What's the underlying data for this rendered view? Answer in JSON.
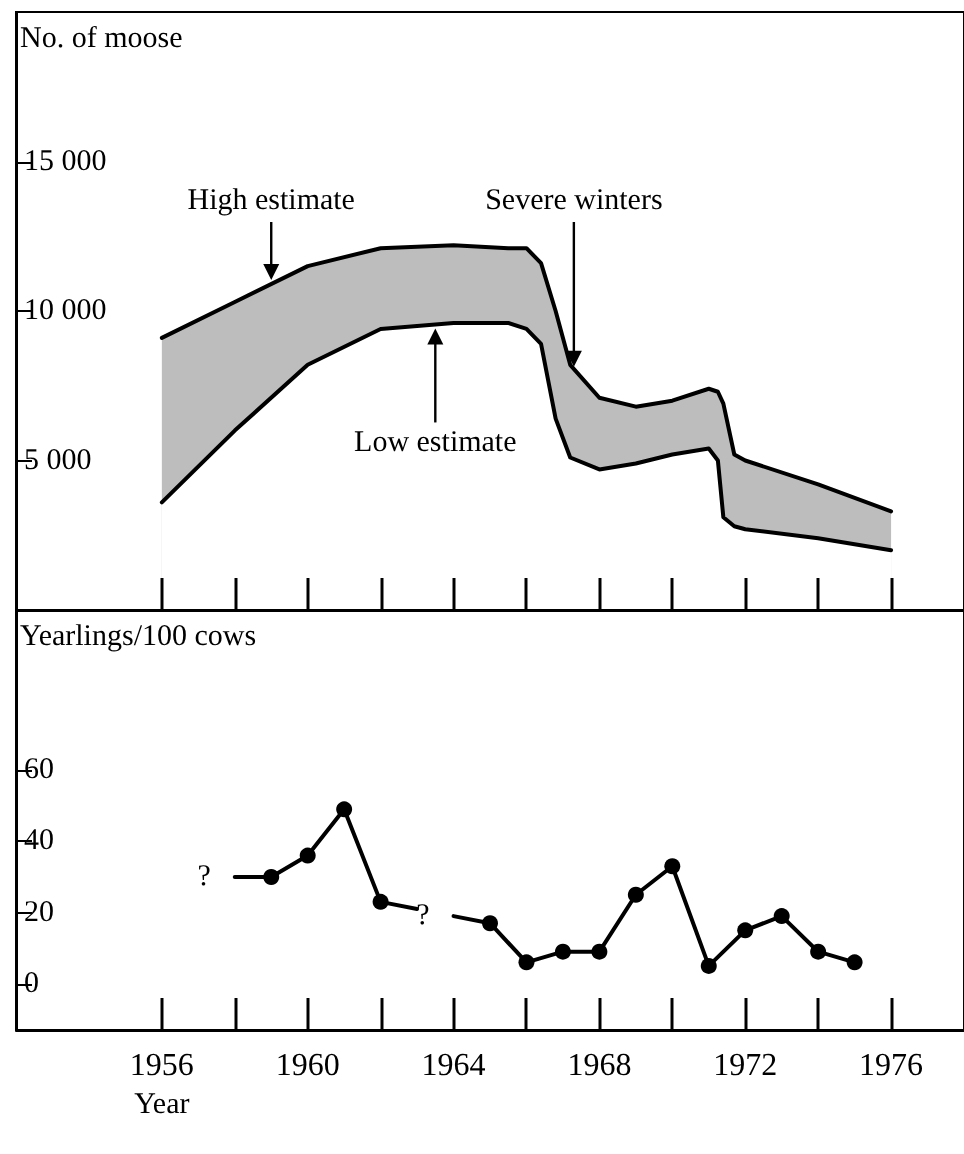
{
  "chart_data": [
    {
      "type": "area",
      "ylabel": "No. of moose",
      "tick_labels": "y",
      "x": [
        1956,
        1958,
        1960,
        1962,
        1964,
        1965.5,
        1966,
        1966.4,
        1966.8,
        1967.2,
        1968,
        1969,
        1970,
        1971,
        1971.25,
        1971.4,
        1971.7,
        1972,
        1974,
        1976
      ],
      "series": [
        {
          "color": "#000000",
          "values": [
            9100,
            10300,
            11500,
            12100,
            12200,
            12100,
            12100,
            11600,
            10000,
            8200,
            7100,
            6800,
            7000,
            7400,
            7300,
            6900,
            5200,
            5000,
            4200,
            3300
          ]
        },
        {
          "color": "#000000",
          "values": [
            3600,
            6000,
            8200,
            9400,
            9600,
            9600,
            9400,
            8900,
            6400,
            5100,
            4700,
            4900,
            5200,
            5400,
            5000,
            3100,
            2800,
            2700,
            2400,
            2000
          ]
        }
      ],
      "xlim": [
        1952,
        1978
      ],
      "xticks": [
        {
          "value": 1956,
          "label": null
        },
        {
          "value": 1958,
          "label": null
        },
        {
          "value": 1960,
          "label": null
        },
        {
          "value": 1962,
          "label": null
        },
        {
          "value": 1964,
          "label": null
        },
        {
          "value": 1966,
          "label": null
        },
        {
          "value": 1968,
          "label": null
        },
        {
          "value": 1970,
          "label": null
        },
        {
          "value": 1972,
          "label": null
        },
        {
          "value": 1974,
          "label": null
        },
        {
          "value": 1976,
          "label": null
        }
      ],
      "ylim": [
        0,
        20000
      ],
      "yticks": [
        {
          "value": 5000,
          "label": "5 000"
        },
        {
          "value": 10000,
          "label": "10 000"
        },
        {
          "value": 15000,
          "label": "15 000"
        }
      ],
      "annotations": [
        {
          "text": "High estimate",
          "x": 1959,
          "y": 10900
        },
        {
          "text": "Low estimate",
          "x": 1963.5,
          "y": 9550
        },
        {
          "text": "Severe winters",
          "x": 1967.3,
          "y": 8000
        }
      ]
    },
    {
      "type": "line",
      "ylabel": "Yearlings/100 cows",
      "xlabel": "Year",
      "marker": "circle",
      "series": [
        {
          "color": "#000000",
          "x": [
            1959,
            1960,
            1961,
            1962
          ],
          "values": [
            30,
            36,
            49,
            23
          ]
        },
        {
          "color": "#000000",
          "x": [
            1965,
            1966,
            1967,
            1968,
            1969,
            1970,
            1971,
            1972,
            1973,
            1974,
            1975
          ],
          "values": [
            17,
            6,
            9,
            9,
            25,
            33,
            5,
            15,
            19,
            9,
            6
          ]
        },
        {
          "color": "#000000",
          "marker": "none",
          "x": [
            1958,
            1959
          ],
          "values": [
            30,
            30
          ]
        },
        {
          "color": "#000000",
          "marker": "none",
          "x": [
            1962,
            1963
          ],
          "values": [
            23,
            21
          ]
        },
        {
          "color": "#000000",
          "marker": "none",
          "x": [
            1964,
            1965
          ],
          "values": [
            19,
            17
          ]
        }
      ],
      "xlim": [
        1952,
        1978
      ],
      "xticks": [
        1956,
        {
          "value": 1958,
          "label": null
        },
        1960,
        {
          "value": 1962,
          "label": null
        },
        1964,
        {
          "value": 1966,
          "label": null
        },
        1968,
        {
          "value": 1970,
          "label": null
        },
        1972,
        {
          "value": 1974,
          "label": null
        },
        1976
      ],
      "ylim": [
        -13,
        105
      ],
      "yticks": [
        0,
        20,
        40,
        60
      ],
      "annotations": [
        {
          "text": "?",
          "x": 1958,
          "y": 30
        },
        {
          "text": "?",
          "x": 1964,
          "y": 19
        }
      ]
    }
  ]
}
